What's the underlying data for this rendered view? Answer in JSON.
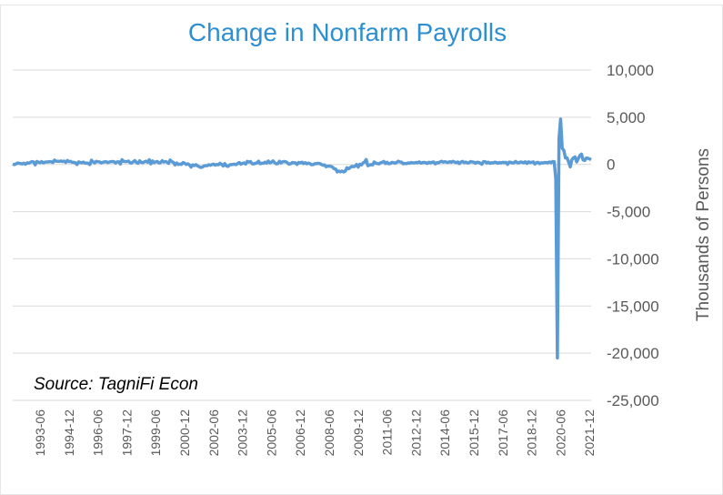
{
  "chart_data": {
    "type": "line",
    "title": "Change in Nonfarm Payrolls",
    "ylabel": "Thousands of Persons",
    "annotation": "Source: TagniFi Econ",
    "color": "#5b9bd5",
    "grid": true,
    "ylim": [
      -25000,
      10000
    ],
    "yticks": [
      {
        "value": -25000,
        "label": "-25,000"
      },
      {
        "value": -20000,
        "label": "-20,000"
      },
      {
        "value": -15000,
        "label": "-15,000"
      },
      {
        "value": -10000,
        "label": "-10,000"
      },
      {
        "value": -5000,
        "label": "-5,000"
      },
      0,
      {
        "value": 5000,
        "label": "5,000"
      },
      {
        "value": 10000,
        "label": "10,000"
      }
    ],
    "categories": [
      null,
      null,
      null,
      null,
      null,
      null,
      null,
      null,
      null,
      null,
      null,
      null,
      null,
      null,
      null,
      null,
      null,
      "1993-06",
      null,
      null,
      null,
      null,
      null,
      null,
      null,
      null,
      null,
      null,
      null,
      null,
      null,
      null,
      null,
      null,
      null,
      "1994-12",
      null,
      null,
      null,
      null,
      null,
      null,
      null,
      null,
      null,
      null,
      null,
      null,
      null,
      null,
      null,
      null,
      null,
      "1996-06",
      null,
      null,
      null,
      null,
      null,
      null,
      null,
      null,
      null,
      null,
      null,
      null,
      null,
      null,
      null,
      null,
      null,
      "1997-12",
      null,
      null,
      null,
      null,
      null,
      null,
      null,
      null,
      null,
      null,
      null,
      null,
      null,
      null,
      null,
      null,
      null,
      "1999-06",
      null,
      null,
      null,
      null,
      null,
      null,
      null,
      null,
      null,
      null,
      null,
      null,
      null,
      null,
      null,
      null,
      null,
      "2000-12",
      null,
      null,
      null,
      null,
      null,
      null,
      null,
      null,
      null,
      null,
      null,
      null,
      null,
      null,
      null,
      null,
      null,
      "2002-06",
      null,
      null,
      null,
      null,
      null,
      null,
      null,
      null,
      null,
      null,
      null,
      null,
      null,
      null,
      null,
      null,
      null,
      "2003-12",
      null,
      null,
      null,
      null,
      null,
      null,
      null,
      null,
      null,
      null,
      null,
      null,
      null,
      null,
      null,
      null,
      null,
      "2005-06",
      null,
      null,
      null,
      null,
      null,
      null,
      null,
      null,
      null,
      null,
      null,
      null,
      null,
      null,
      null,
      null,
      null,
      "2006-12",
      null,
      null,
      null,
      null,
      null,
      null,
      null,
      null,
      null,
      null,
      null,
      null,
      null,
      null,
      null,
      null,
      null,
      "2008-06",
      null,
      null,
      null,
      null,
      null,
      null,
      null,
      null,
      null,
      null,
      null,
      null,
      null,
      null,
      null,
      null,
      null,
      "2009-12",
      null,
      null,
      null,
      null,
      null,
      null,
      null,
      null,
      null,
      null,
      null,
      null,
      null,
      null,
      null,
      null,
      null,
      "2011-06",
      null,
      null,
      null,
      null,
      null,
      null,
      null,
      null,
      null,
      null,
      null,
      null,
      null,
      null,
      null,
      null,
      null,
      "2012-12",
      null,
      null,
      null,
      null,
      null,
      null,
      null,
      null,
      null,
      null,
      null,
      null,
      null,
      null,
      null,
      null,
      null,
      "2014-06",
      null,
      null,
      null,
      null,
      null,
      null,
      null,
      null,
      null,
      null,
      null,
      null,
      null,
      null,
      null,
      null,
      null,
      "2015-12",
      null,
      null,
      null,
      null,
      null,
      null,
      null,
      null,
      null,
      null,
      null,
      null,
      null,
      null,
      null,
      null,
      null,
      "2017-06",
      null,
      null,
      null,
      null,
      null,
      null,
      null,
      null,
      null,
      null,
      null,
      null,
      null,
      null,
      null,
      null,
      null,
      "2018-12",
      null,
      null,
      null,
      null,
      null,
      null,
      null,
      null,
      null,
      null,
      null,
      null,
      null,
      null,
      null,
      null,
      null,
      "2020-06",
      null,
      null,
      null,
      null,
      null,
      null,
      null,
      null,
      null,
      null,
      null,
      null,
      null,
      null,
      null,
      null,
      null,
      "2021-12",
      null
    ],
    "values": [
      50,
      -20,
      60,
      150,
      120,
      80,
      60,
      130,
      20,
      180,
      130,
      220,
      300,
      260,
      -40,
      320,
      230,
      180,
      300,
      170,
      240,
      260,
      260,
      300,
      270,
      200,
      460,
      340,
      330,
      320,
      370,
      300,
      350,
      210,
      420,
      290,
      330,
      220,
      220,
      170,
      -10,
      270,
      210,
      180,
      250,
      130,
      150,
      120,
      -20,
      450,
      280,
      160,
      330,
      280,
      270,
      170,
      220,
      270,
      290,
      200,
      240,
      290,
      310,
      290,
      150,
      270,
      280,
      50,
      500,
      330,
      300,
      300,
      360,
      180,
      150,
      280,
      410,
      190,
      130,
      380,
      210,
      190,
      280,
      340,
      220,
      500,
      60,
      370,
      190,
      270,
      310,
      160,
      190,
      400,
      250,
      300,
      250,
      110,
      470,
      290,
      220,
      -50,
      160,
      -10,
      50,
      0,
      200,
      130,
      0,
      70,
      -40,
      -280,
      -40,
      -120,
      -20,
      -150,
      -240,
      -320,
      -290,
      -170,
      -130,
      -140,
      -30,
      -90,
      -10,
      30,
      -80,
      0,
      -40,
      120,
      10,
      -160,
      90,
      -160,
      -210,
      -50,
      -10,
      0,
      30,
      -30,
      100,
      200,
      20,
      110,
      160,
      40,
      330,
      250,
      310,
      80,
      50,
      130,
      160,
      340,
      70,
      130,
      130,
      240,
      140,
      360,
      170,
      240,
      370,
      190,
      70,
      80,
      340,
      160,
      280,
      310,
      280,
      180,
      20,
      80,
      200,
      180,
      160,
      0,
      210,
      170,
      240,
      90,
      190,
      70,
      140,
      80,
      -30,
      -20,
      80,
      80,
      120,
      100,
      10,
      -80,
      -50,
      -240,
      -180,
      -170,
      -210,
      -270,
      -460,
      -480,
      -800,
      -700,
      -780,
      -700,
      -800,
      -700,
      -350,
      -470,
      -340,
      -210,
      -240,
      -200,
      0,
      -280,
      20,
      -60,
      160,
      250,
      520,
      -130,
      -80,
      -10,
      -50,
      260,
      130,
      90,
      60,
      180,
      230,
      320,
      100,
      230,
      70,
      100,
      220,
      180,
      140,
      210,
      340,
      260,
      240,
      70,
      110,
      80,
      160,
      130,
      200,
      170,
      160,
      210,
      190,
      270,
      140,
      190,
      220,
      180,
      110,
      230,
      170,
      230,
      260,
      60,
      190,
      170,
      270,
      330,
      240,
      300,
      240,
      210,
      290,
      230,
      330,
      250,
      190,
      260,
      90,
      250,
      320,
      190,
      250,
      160,
      180,
      310,
      260,
      240,
      130,
      240,
      210,
      140,
      20,
      300,
      300,
      150,
      240,
      120,
      180,
      170,
      240,
      200,
      120,
      200,
      160,
      230,
      190,
      220,
      10,
      250,
      220,
      160,
      180,
      320,
      190,
      170,
      260,
      230,
      180,
      280,
      110,
      270,
      200,
      230,
      270,
      50,
      190,
      220,
      80,
      170,
      160,
      200,
      200,
      170,
      260,
      180,
      310,
      290,
      -1500,
      -20500,
      2700,
      4800,
      1700,
      1500,
      700,
      700,
      260,
      -270,
      500,
      700,
      800,
      270,
      600,
      960,
      1090,
      480,
      420,
      680,
      650,
      590,
      500
    ]
  }
}
